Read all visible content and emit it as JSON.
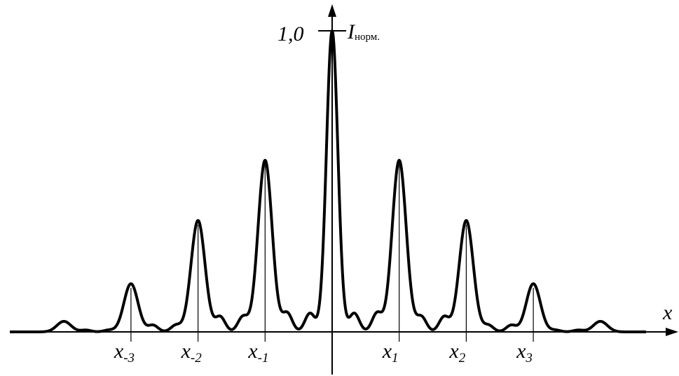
{
  "chart_data": {
    "type": "line",
    "title": "",
    "ylabel": {
      "main": "I",
      "sub": "норм."
    },
    "xlabel": "x",
    "y_tick": "1,0",
    "ylim": [
      0,
      1.0
    ],
    "xlim": [
      -4.85,
      4.85
    ],
    "x_ticks": [
      {
        "x": -3,
        "main": "x",
        "sub": "-3"
      },
      {
        "x": -2,
        "main": "x",
        "sub": "-2"
      },
      {
        "x": -1,
        "main": "x",
        "sub": "-1"
      },
      {
        "x": 1,
        "main": "x",
        "sub": "1"
      },
      {
        "x": 2,
        "main": "x",
        "sub": "2"
      },
      {
        "x": 3,
        "main": "x",
        "sub": "3"
      }
    ],
    "principal_maxima": [
      {
        "x": 0,
        "y": 1.0
      },
      {
        "x": -1,
        "y": 0.57
      },
      {
        "x": 1,
        "y": 0.57
      },
      {
        "x": -2,
        "y": 0.37
      },
      {
        "x": 2,
        "y": 0.37
      },
      {
        "x": -3,
        "y": 0.16
      },
      {
        "x": 3,
        "y": 0.16
      },
      {
        "x": -4,
        "y": 0.035
      },
      {
        "x": 4,
        "y": 0.035
      }
    ],
    "secondary_maxima": [
      {
        "x": -3.67,
        "y": 0.006
      },
      {
        "x": -3.33,
        "y": 0.006
      },
      {
        "x": -2.67,
        "y": 0.022
      },
      {
        "x": -2.33,
        "y": 0.022
      },
      {
        "x": -1.67,
        "y": 0.05
      },
      {
        "x": -1.33,
        "y": 0.05
      },
      {
        "x": -0.67,
        "y": 0.062
      },
      {
        "x": -0.33,
        "y": 0.062
      },
      {
        "x": 0.33,
        "y": 0.062
      },
      {
        "x": 0.67,
        "y": 0.062
      },
      {
        "x": 1.33,
        "y": 0.05
      },
      {
        "x": 1.67,
        "y": 0.05
      },
      {
        "x": 2.33,
        "y": 0.022
      },
      {
        "x": 2.67,
        "y": 0.022
      },
      {
        "x": 3.33,
        "y": 0.006
      },
      {
        "x": 3.67,
        "y": 0.006
      }
    ],
    "grid": false,
    "legend": "none"
  }
}
